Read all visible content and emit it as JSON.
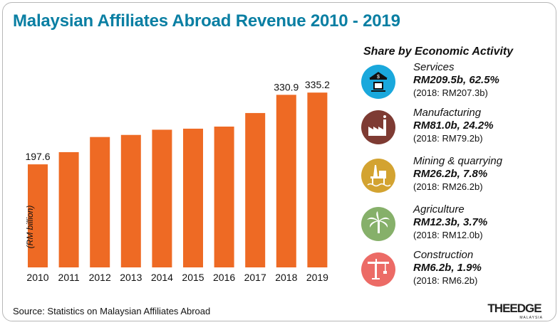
{
  "title": "Malaysian Affiliates Abroad Revenue 2010 - 2019",
  "chart_data": {
    "type": "bar",
    "categories": [
      "2010",
      "2011",
      "2012",
      "2013",
      "2014",
      "2015",
      "2016",
      "2017",
      "2018",
      "2019"
    ],
    "values": [
      197.6,
      221,
      250,
      254,
      264,
      266,
      270,
      296,
      330.9,
      335.2
    ],
    "data_labels": [
      {
        "index": 0,
        "text": "197.6"
      },
      {
        "index": 8,
        "text": "330.9"
      },
      {
        "index": 9,
        "text": "335.2"
      }
    ],
    "ylabel": "(RM billion)",
    "ylim": [
      0,
      360
    ],
    "bar_color": "#ee6a24",
    "grid": false
  },
  "share": {
    "title": "Share by Economic Activity",
    "items": [
      {
        "name": "Services",
        "value": "RM209.5b, 62.5%",
        "prev": "(2018: RM207.3b)",
        "icon": "services-icon",
        "color": "#1aa8dc"
      },
      {
        "name": "Manufacturing",
        "value": "RM81.0b, 24.2%",
        "prev": "(2018: RM79.2b)",
        "icon": "factory-icon",
        "color": "#7e3b33"
      },
      {
        "name": "Mining & quarrying",
        "value": "RM26.2b, 7.8%",
        "prev": "(2018: RM26.2b)",
        "icon": "oil-rig-icon",
        "color": "#d3a331"
      },
      {
        "name": "Agriculture",
        "value": "RM12.3b, 3.7%",
        "prev": "(2018: RM12.0b)",
        "icon": "palm-tree-icon",
        "color": "#86b06a"
      },
      {
        "name": "Construction",
        "value": "RM6.2b, 1.9%",
        "prev": "(2018: RM6.2b)",
        "icon": "crane-icon",
        "color": "#ec6b66"
      }
    ]
  },
  "source": "Source: Statistics on Malaysian Affiliates Abroad",
  "brand": {
    "name": "THEEDGE",
    "sub": "MALAYSIA"
  }
}
